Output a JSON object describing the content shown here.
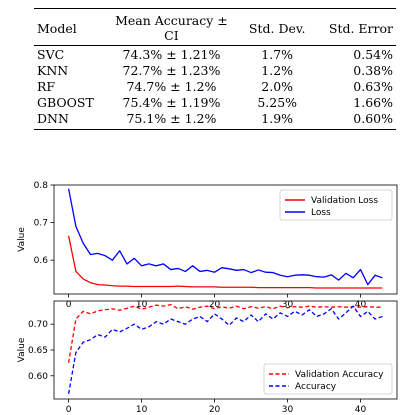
{
  "table": {
    "headers": [
      "Model",
      "Mean Accuracy ± CI",
      "Std. Dev.",
      "Std. Error"
    ],
    "rows": [
      [
        "SVC",
        "74.3% ± 1.21%",
        "1.7%",
        "0.54%"
      ],
      [
        "KNN",
        "72.7% ± 1.23%",
        "1.2%",
        "0.38%"
      ],
      [
        "RF",
        "74.7% ± 1.2%",
        "2.0%",
        "0.63%"
      ],
      [
        "GBOOST",
        "75.4% ± 1.19%",
        "5.25%",
        "1.66%"
      ],
      [
        "DNN",
        "75.1% ± 1.2%",
        "1.9%",
        "0.60%"
      ]
    ]
  },
  "chart_data": [
    {
      "type": "line",
      "ylabel": "Value",
      "xlim": [
        -2,
        45
      ],
      "ylim": [
        0.51,
        0.8
      ],
      "xticks": [
        0,
        10,
        20,
        30,
        40
      ],
      "yticks": [
        0.6,
        0.7,
        0.8
      ],
      "legend": "top-right",
      "series": [
        {
          "name": "Validation Loss",
          "color": "#ff0000",
          "style": "solid",
          "values": [
            0.665,
            0.57,
            0.55,
            0.54,
            0.535,
            0.534,
            0.532,
            0.531,
            0.531,
            0.53,
            0.53,
            0.53,
            0.53,
            0.53,
            0.53,
            0.531,
            0.53,
            0.529,
            0.529,
            0.529,
            0.529,
            0.528,
            0.528,
            0.528,
            0.528,
            0.528,
            0.527,
            0.527,
            0.527,
            0.527,
            0.527,
            0.527,
            0.527,
            0.527,
            0.526,
            0.526,
            0.526,
            0.526,
            0.526,
            0.526,
            0.526,
            0.526,
            0.526,
            0.526
          ]
        },
        {
          "name": "Loss",
          "color": "#0000ff",
          "style": "solid",
          "values": [
            0.79,
            0.69,
            0.645,
            0.615,
            0.618,
            0.612,
            0.6,
            0.625,
            0.59,
            0.605,
            0.585,
            0.59,
            0.585,
            0.59,
            0.575,
            0.578,
            0.57,
            0.585,
            0.57,
            0.573,
            0.568,
            0.58,
            0.577,
            0.573,
            0.575,
            0.567,
            0.574,
            0.568,
            0.567,
            0.56,
            0.556,
            0.56,
            0.561,
            0.56,
            0.556,
            0.555,
            0.561,
            0.547,
            0.565,
            0.553,
            0.575,
            0.535,
            0.56,
            0.553
          ]
        }
      ]
    },
    {
      "type": "line",
      "ylabel": "Value",
      "xlim": [
        -2,
        45
      ],
      "ylim": [
        0.555,
        0.745
      ],
      "xticks": [
        0,
        10,
        20,
        30,
        40
      ],
      "yticks": [
        0.6,
        0.65,
        0.7
      ],
      "legend": "bottom-right",
      "series": [
        {
          "name": "Validation Accuracy",
          "color": "#ff0000",
          "style": "dashed",
          "values": [
            0.625,
            0.71,
            0.725,
            0.72,
            0.726,
            0.728,
            0.73,
            0.727,
            0.731,
            0.735,
            0.729,
            0.733,
            0.737,
            0.735,
            0.738,
            0.73,
            0.734,
            0.729,
            0.733,
            0.735,
            0.73,
            0.734,
            0.731,
            0.735,
            0.73,
            0.734,
            0.731,
            0.734,
            0.73,
            0.735,
            0.732,
            0.734,
            0.733,
            0.735,
            0.733,
            0.734,
            0.733,
            0.734,
            0.733,
            0.734,
            0.733,
            0.734,
            0.733,
            0.733
          ]
        },
        {
          "name": "Accuracy",
          "color": "#0000ff",
          "style": "dashed",
          "values": [
            0.565,
            0.645,
            0.665,
            0.67,
            0.68,
            0.675,
            0.69,
            0.685,
            0.692,
            0.7,
            0.69,
            0.695,
            0.705,
            0.7,
            0.71,
            0.705,
            0.7,
            0.71,
            0.715,
            0.705,
            0.72,
            0.71,
            0.698,
            0.712,
            0.705,
            0.718,
            0.705,
            0.72,
            0.71,
            0.722,
            0.715,
            0.725,
            0.718,
            0.728,
            0.715,
            0.72,
            0.73,
            0.71,
            0.722,
            0.735,
            0.715,
            0.725,
            0.71,
            0.715
          ]
        }
      ]
    }
  ]
}
